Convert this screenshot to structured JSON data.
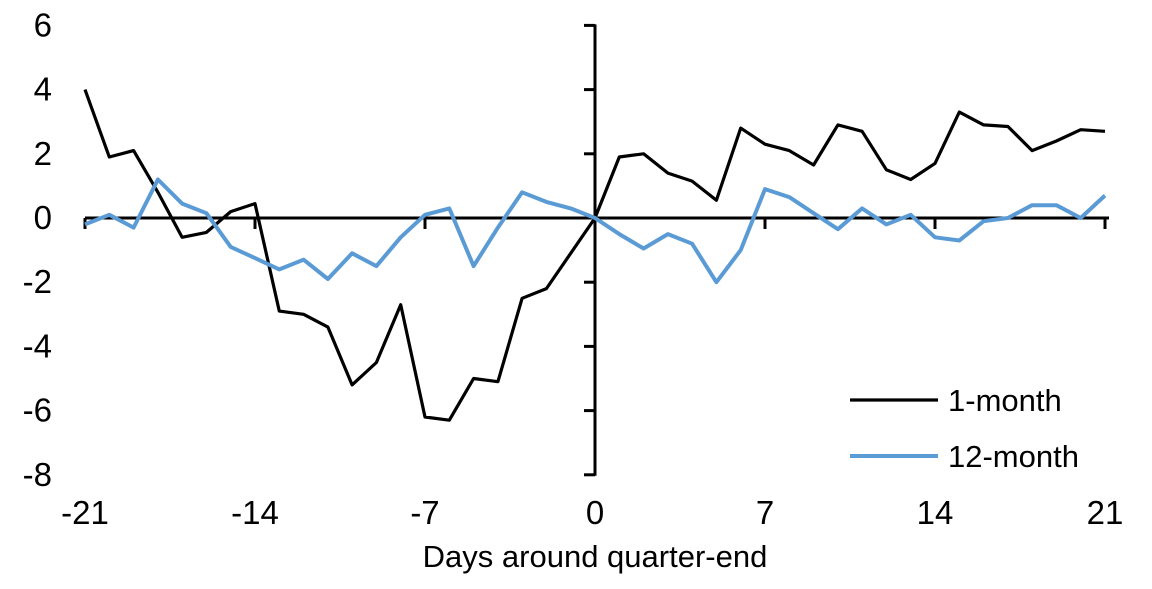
{
  "chart_data": {
    "type": "line",
    "title": "",
    "xlabel": "Days around quarter-end",
    "ylabel": "",
    "x": [
      -21,
      -20,
      -19,
      -18,
      -17,
      -16,
      -15,
      -14,
      -13,
      -12,
      -11,
      -10,
      -9,
      -8,
      -7,
      -6,
      -5,
      -4,
      -3,
      -2,
      -1,
      0,
      1,
      2,
      3,
      4,
      5,
      6,
      7,
      8,
      9,
      10,
      11,
      12,
      13,
      14,
      15,
      16,
      17,
      18,
      19,
      20,
      21
    ],
    "series": [
      {
        "name": "1-month",
        "color": "#000000",
        "values": [
          4.0,
          1.9,
          2.1,
          0.8,
          -0.6,
          -0.45,
          0.2,
          0.45,
          -2.9,
          -3.0,
          -3.4,
          -5.2,
          -4.5,
          -2.7,
          -6.2,
          -6.3,
          -5.0,
          -5.1,
          -2.5,
          -2.2,
          -1.1,
          0.0,
          1.9,
          2.0,
          1.4,
          1.15,
          0.55,
          2.8,
          2.3,
          2.1,
          1.65,
          2.9,
          2.7,
          1.5,
          1.2,
          1.7,
          3.3,
          2.9,
          2.85,
          2.1,
          2.4,
          2.75,
          2.7
        ]
      },
      {
        "name": "12-month",
        "color": "#5B9BD5",
        "values": [
          -0.2,
          0.1,
          -0.3,
          1.2,
          0.45,
          0.15,
          -0.9,
          -1.25,
          -1.6,
          -1.3,
          -1.9,
          -1.1,
          -1.5,
          -0.6,
          0.1,
          0.3,
          -1.5,
          -0.3,
          0.8,
          0.5,
          0.3,
          0.0,
          -0.5,
          -0.95,
          -0.5,
          -0.8,
          -2.0,
          -1.0,
          0.9,
          0.65,
          0.15,
          -0.35,
          0.3,
          -0.2,
          0.1,
          -0.6,
          -0.7,
          -0.1,
          0.0,
          0.4,
          0.4,
          0.0,
          0.7
        ]
      }
    ],
    "xticks": [
      -21,
      -14,
      -7,
      0,
      7,
      14,
      21
    ],
    "yticks": [
      6,
      4,
      2,
      0,
      -2,
      -4,
      -6,
      -8
    ],
    "xlim": [
      -21,
      21
    ],
    "ylim": [
      -8,
      6
    ],
    "grid": false,
    "legend_position": "lower-right",
    "axis_color": "#000000",
    "background_color": "#ffffff"
  }
}
